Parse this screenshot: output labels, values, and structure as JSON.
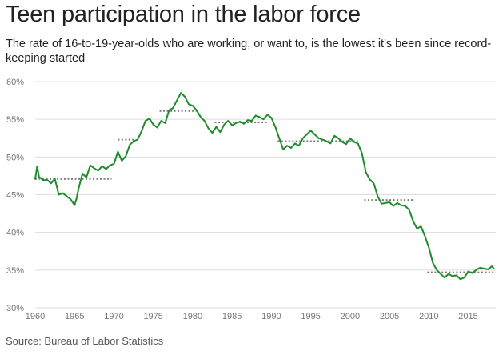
{
  "header": {
    "title": "Teen participation in the labor force",
    "subtitle": "The rate of 16-to-19-year-olds who are working, or want to, is the lowest it's been since record-keeping started"
  },
  "footer": {
    "source": "Source: Bureau of Labor Statistics"
  },
  "chart_data": {
    "type": "line",
    "title": "Teen participation in the labor force",
    "xlabel": "",
    "ylabel": "",
    "xlim": [
      1960,
      2018.5
    ],
    "ylim": [
      30,
      60
    ],
    "grid": true,
    "y_ticks": [
      30,
      35,
      40,
      45,
      50,
      55,
      60
    ],
    "y_tick_labels": [
      "30%",
      "35%",
      "40%",
      "45%",
      "50%",
      "55%",
      "60%"
    ],
    "x_ticks": [
      1960,
      1965,
      1970,
      1975,
      1980,
      1985,
      1990,
      1995,
      2000,
      2005,
      2010,
      2015
    ],
    "x_tick_labels": [
      "1960",
      "1965",
      "1970",
      "1975",
      "1980",
      "1985",
      "1990",
      "1995",
      "2000",
      "2005",
      "2010",
      "2015"
    ],
    "colors": {
      "series": "#1e8c2a",
      "average": "#777777",
      "grid": "#dddddd"
    },
    "series": [
      {
        "x": [
          1960,
          1960.25,
          1960.5,
          1960.75,
          1961,
          1961.5,
          1962,
          1962.5,
          1963,
          1963.5,
          1964,
          1964.5,
          1965,
          1965.25,
          1965.5,
          1966,
          1966.5,
          1967,
          1967.5,
          1968,
          1968.5,
          1969,
          1969.5,
          1970,
          1970.5,
          1971,
          1971.5,
          1972,
          1972.5,
          1973,
          1973.5,
          1974,
          1974.5,
          1975,
          1975.5,
          1976,
          1976.5,
          1977,
          1977.5,
          1978,
          1978.5,
          1979,
          1979.5,
          1980,
          1980.5,
          1981,
          1981.5,
          1982,
          1982.5,
          1983,
          1983.5,
          1984,
          1984.5,
          1985,
          1985.5,
          1986,
          1986.5,
          1987,
          1987.5,
          1988,
          1988.5,
          1989,
          1989.5,
          1990,
          1990.5,
          1991,
          1991.5,
          1992,
          1992.5,
          1993,
          1993.5,
          1994,
          1994.5,
          1995,
          1995.5,
          1996,
          1996.5,
          1997,
          1997.5,
          1998,
          1998.5,
          1999,
          1999.5,
          2000,
          2000.5,
          2001,
          2001.5,
          2002,
          2002.5,
          2003,
          2003.5,
          2004,
          2004.5,
          2005,
          2005.5,
          2006,
          2006.5,
          2007,
          2007.5,
          2008,
          2008.5,
          2009,
          2009.5,
          2010,
          2010.5,
          2011,
          2011.5,
          2012,
          2012.5,
          2013,
          2013.5,
          2014,
          2014.5,
          2015,
          2015.5,
          2016,
          2016.5,
          2017,
          2017.5,
          2018,
          2018.25
        ],
        "values": [
          47.1,
          48.8,
          47.3,
          47.2,
          46.9,
          47.0,
          46.5,
          47.1,
          45.0,
          45.2,
          44.8,
          44.4,
          43.6,
          44.5,
          45.8,
          47.8,
          47.3,
          48.9,
          48.5,
          48.2,
          48.8,
          48.4,
          48.9,
          49.1,
          50.7,
          49.5,
          50.1,
          51.6,
          52.1,
          52.3,
          53.4,
          54.8,
          55.1,
          54.3,
          53.9,
          54.8,
          54.5,
          56.2,
          56.5,
          57.5,
          58.5,
          58.0,
          57.0,
          56.8,
          56.2,
          55.3,
          54.8,
          53.8,
          53.2,
          54.0,
          53.3,
          54.3,
          54.8,
          54.2,
          54.5,
          54.7,
          54.4,
          54.9,
          54.8,
          55.5,
          55.3,
          55.0,
          55.6,
          55.2,
          54.0,
          52.5,
          51.0,
          51.5,
          51.2,
          51.8,
          51.5,
          52.5,
          53.0,
          53.5,
          53.0,
          52.5,
          52.3,
          52.1,
          51.8,
          52.8,
          52.5,
          52.0,
          51.7,
          52.5,
          52.0,
          51.8,
          50.5,
          48.0,
          47.0,
          46.5,
          44.8,
          43.8,
          43.9,
          44.0,
          43.5,
          43.9,
          43.6,
          43.5,
          43.0,
          41.5,
          40.5,
          40.8,
          39.5,
          38.0,
          36.0,
          35.0,
          34.5,
          34.0,
          34.5,
          34.2,
          34.3,
          33.8,
          34.0,
          34.8,
          34.6,
          35.0,
          35.3,
          35.2,
          35.1,
          35.5,
          35.2
        ],
        "name": ""
      }
    ],
    "averages": [
      {
        "x_start": 1960,
        "x_end": 1969.7,
        "value": 47.1
      },
      {
        "x_start": 1970.5,
        "x_end": 1972.7,
        "value": 52.3
      },
      {
        "x_start": 1975.8,
        "x_end": 1980.8,
        "value": 56.1
      },
      {
        "x_start": 1982.8,
        "x_end": 1989.5,
        "value": 54.6
      },
      {
        "x_start": 1990.8,
        "x_end": 2001.0,
        "value": 52.1
      },
      {
        "x_start": 2001.8,
        "x_end": 2008.2,
        "value": 44.3
      },
      {
        "x_start": 2009.8,
        "x_end": 2018.5,
        "value": 34.7
      }
    ]
  }
}
